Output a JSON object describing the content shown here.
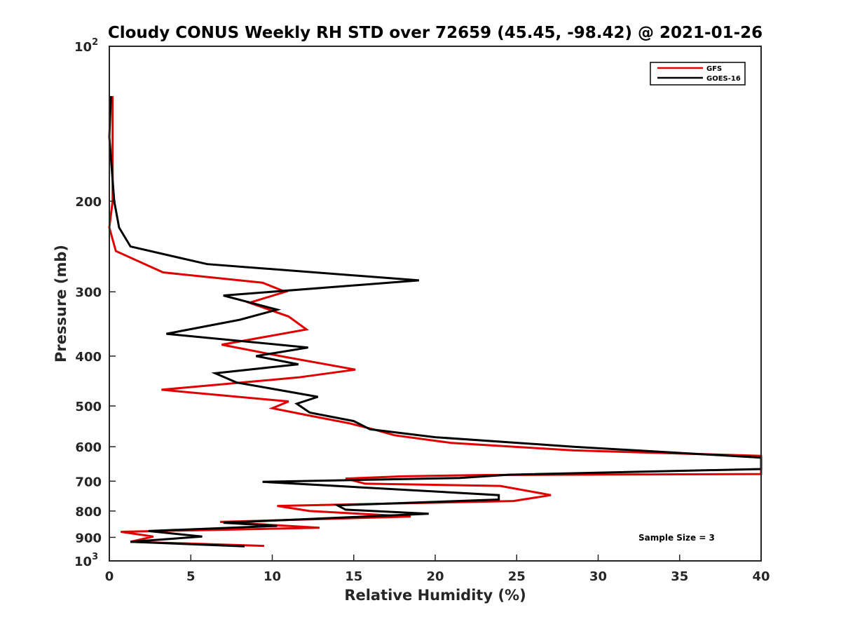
{
  "chart_data": {
    "type": "line",
    "title": "Cloudy CONUS Weekly RH STD over 72659 (45.45, -98.42) @ 2021-01-26",
    "xlabel": "Relative Humidity (%)",
    "ylabel": "Pressure (mb)",
    "xlim": [
      0,
      40
    ],
    "ylim": [
      100,
      1000
    ],
    "y_scale": "log",
    "y_reversed": true,
    "grid": false,
    "legend_position": "top-right",
    "x_ticks": [
      "0",
      "5",
      "10",
      "15",
      "20",
      "25",
      "30",
      "35",
      "40"
    ],
    "y_ticks": [
      {
        "value": 100,
        "label": "10",
        "sup": "2"
      },
      {
        "value": 200,
        "label": "200",
        "sup": ""
      },
      {
        "value": 300,
        "label": "300",
        "sup": ""
      },
      {
        "value": 400,
        "label": "400",
        "sup": ""
      },
      {
        "value": 500,
        "label": "500",
        "sup": ""
      },
      {
        "value": 600,
        "label": "600",
        "sup": ""
      },
      {
        "value": 700,
        "label": "700",
        "sup": ""
      },
      {
        "value": 800,
        "label": "800",
        "sup": ""
      },
      {
        "value": 900,
        "label": "900",
        "sup": ""
      },
      {
        "value": 1000,
        "label": "10",
        "sup": "3"
      }
    ],
    "series": [
      {
        "name": "GFS",
        "color": "#e00000",
        "points": [
          [
            0.2,
            125
          ],
          [
            0.2,
            150
          ],
          [
            0.2,
            200
          ],
          [
            0,
            225
          ],
          [
            0.4,
            250
          ],
          [
            3.3,
            275
          ],
          [
            9.4,
            288
          ],
          [
            10.8,
            300
          ],
          [
            8.6,
            315
          ],
          [
            11.0,
            335
          ],
          [
            12.1,
            355
          ],
          [
            6.9,
            380
          ],
          [
            10.5,
            400
          ],
          [
            15.1,
            425
          ],
          [
            11.6,
            440
          ],
          [
            3.2,
            465
          ],
          [
            11.0,
            490
          ],
          [
            10.0,
            505
          ],
          [
            12.0,
            520
          ],
          [
            14.7,
            540
          ],
          [
            16.2,
            555
          ],
          [
            17.5,
            570
          ],
          [
            21.0,
            590
          ],
          [
            28.5,
            610
          ],
          [
            40,
            625
          ],
          [
            40,
            678
          ],
          [
            23.0,
            681
          ],
          [
            18.0,
            685
          ],
          [
            14.5,
            692
          ],
          [
            15.7,
            708
          ],
          [
            24.0,
            715
          ],
          [
            27.1,
            745
          ],
          [
            24.8,
            765
          ],
          [
            10.3,
            782
          ],
          [
            12.3,
            800
          ],
          [
            18.5,
            820
          ],
          [
            6.8,
            840
          ],
          [
            12.9,
            862
          ],
          [
            0.7,
            878
          ],
          [
            2.7,
            897
          ],
          [
            1.3,
            918
          ],
          [
            9.5,
            935
          ]
        ]
      },
      {
        "name": "GOES-16",
        "color": "#000000",
        "points": [
          [
            0.1,
            125
          ],
          [
            0,
            150
          ],
          [
            0.3,
            200
          ],
          [
            0.6,
            225
          ],
          [
            1.3,
            245
          ],
          [
            6.0,
            265
          ],
          [
            19.0,
            285
          ],
          [
            7.0,
            305
          ],
          [
            10.3,
            325
          ],
          [
            8.0,
            340
          ],
          [
            3.5,
            362
          ],
          [
            12.2,
            385
          ],
          [
            9.0,
            400
          ],
          [
            11.6,
            415
          ],
          [
            6.5,
            432
          ],
          [
            7.8,
            450
          ],
          [
            12.8,
            480
          ],
          [
            11.5,
            495
          ],
          [
            12.3,
            515
          ],
          [
            15.0,
            535
          ],
          [
            16.0,
            555
          ],
          [
            20.0,
            575
          ],
          [
            28.5,
            600
          ],
          [
            40,
            630
          ],
          [
            40,
            663
          ],
          [
            24.5,
            680
          ],
          [
            21.5,
            690
          ],
          [
            9.4,
            702
          ],
          [
            23.9,
            745
          ],
          [
            23.9,
            760
          ],
          [
            14.0,
            780
          ],
          [
            14.5,
            795
          ],
          [
            19.6,
            810
          ],
          [
            7.0,
            843
          ],
          [
            10.3,
            855
          ],
          [
            2.4,
            875
          ],
          [
            5.7,
            897
          ],
          [
            1.3,
            918
          ],
          [
            8.3,
            937
          ]
        ]
      }
    ],
    "annotation": "Sample Size = 3"
  }
}
